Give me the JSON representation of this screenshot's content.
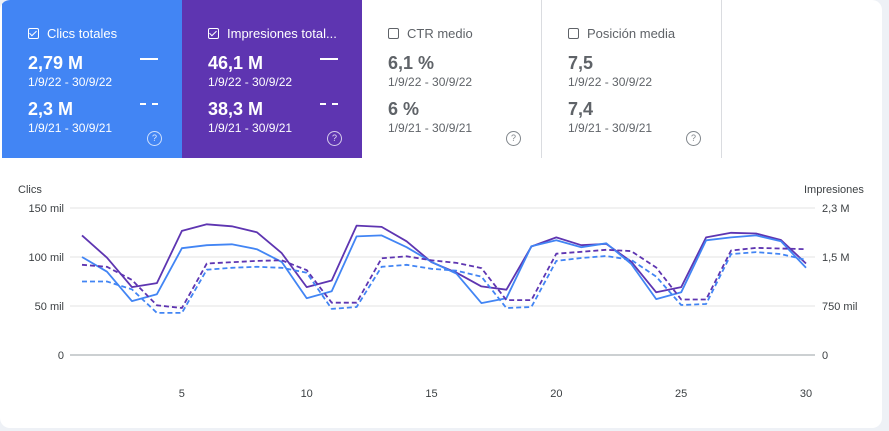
{
  "metrics": [
    {
      "label": "Clics totales",
      "checked": true,
      "current_value": "2,79 M",
      "current_range": "1/9/22 - 30/9/22",
      "previous_value": "2,3 M",
      "previous_range": "1/9/21 - 30/9/21",
      "help": "?"
    },
    {
      "label": "Impresiones total...",
      "checked": true,
      "current_value": "46,1 M",
      "current_range": "1/9/22 - 30/9/22",
      "previous_value": "38,3 M",
      "previous_range": "1/9/21 - 30/9/21",
      "help": "?"
    },
    {
      "label": "CTR medio",
      "checked": false,
      "current_value": "6,1 %",
      "current_range": "1/9/22 - 30/9/22",
      "previous_value": "6 %",
      "previous_range": "1/9/21 - 30/9/21",
      "help": "?"
    },
    {
      "label": "Posición media",
      "checked": false,
      "current_value": "7,5",
      "current_range": "1/9/22 - 30/9/22",
      "previous_value": "7,4",
      "previous_range": "1/9/21 - 30/9/21",
      "help": "?"
    }
  ],
  "chart_data": {
    "type": "line",
    "ylabel_left": "Clics",
    "ylabel_right": "Impresiones",
    "ylim_left": [
      0,
      150000
    ],
    "ylim_right": [
      0,
      2250000
    ],
    "left_ticks": [
      "0",
      "50 mil",
      "100 mil",
      "150 mil"
    ],
    "right_ticks": [
      "0",
      "750 mil",
      "1,5 M",
      "2,3 M"
    ],
    "x": [
      1,
      2,
      3,
      4,
      5,
      6,
      7,
      8,
      9,
      10,
      11,
      12,
      13,
      14,
      15,
      16,
      17,
      18,
      19,
      20,
      21,
      22,
      23,
      24,
      25,
      26,
      27,
      28,
      29,
      30
    ],
    "x_ticks": [
      5,
      10,
      15,
      20,
      25,
      30
    ],
    "grid": true,
    "series": [
      {
        "axis": "right",
        "style": "solid",
        "color": "#5e35b1",
        "values": [
          1830000,
          1490000,
          1040000,
          1100000,
          1900000,
          2000000,
          1970000,
          1880000,
          1560000,
          1040000,
          1140000,
          1980000,
          1960000,
          1740000,
          1420000,
          1260000,
          1050000,
          1000000,
          1660000,
          1800000,
          1680000,
          1700000,
          1430000,
          960000,
          1040000,
          1800000,
          1870000,
          1860000,
          1760000,
          1400000
        ]
      },
      {
        "axis": "left",
        "style": "solid",
        "color": "#4285f4",
        "values": [
          100000,
          85000,
          55000,
          62000,
          109000,
          112000,
          113000,
          108000,
          95000,
          58000,
          65000,
          121000,
          122000,
          110000,
          95000,
          83000,
          53000,
          58000,
          111000,
          117000,
          110000,
          114000,
          93000,
          57000,
          64000,
          117000,
          120000,
          122000,
          116000,
          89000
        ]
      },
      {
        "axis": "right",
        "style": "dashed",
        "color": "#5e35b1",
        "values": [
          1380000,
          1350000,
          1150000,
          760000,
          720000,
          1400000,
          1420000,
          1440000,
          1450000,
          1300000,
          800000,
          800000,
          1480000,
          1510000,
          1450000,
          1410000,
          1330000,
          840000,
          840000,
          1550000,
          1580000,
          1610000,
          1590000,
          1340000,
          850000,
          850000,
          1600000,
          1640000,
          1630000,
          1620000
        ]
      },
      {
        "axis": "left",
        "style": "dashed",
        "color": "#4285f4",
        "values": [
          75000,
          75000,
          67000,
          43000,
          43000,
          87000,
          89000,
          90000,
          89000,
          84000,
          47000,
          49000,
          90000,
          92000,
          88000,
          86000,
          80000,
          48000,
          49000,
          96000,
          99000,
          101000,
          97000,
          80000,
          51000,
          52000,
          103000,
          105000,
          103000,
          97000
        ]
      }
    ]
  }
}
